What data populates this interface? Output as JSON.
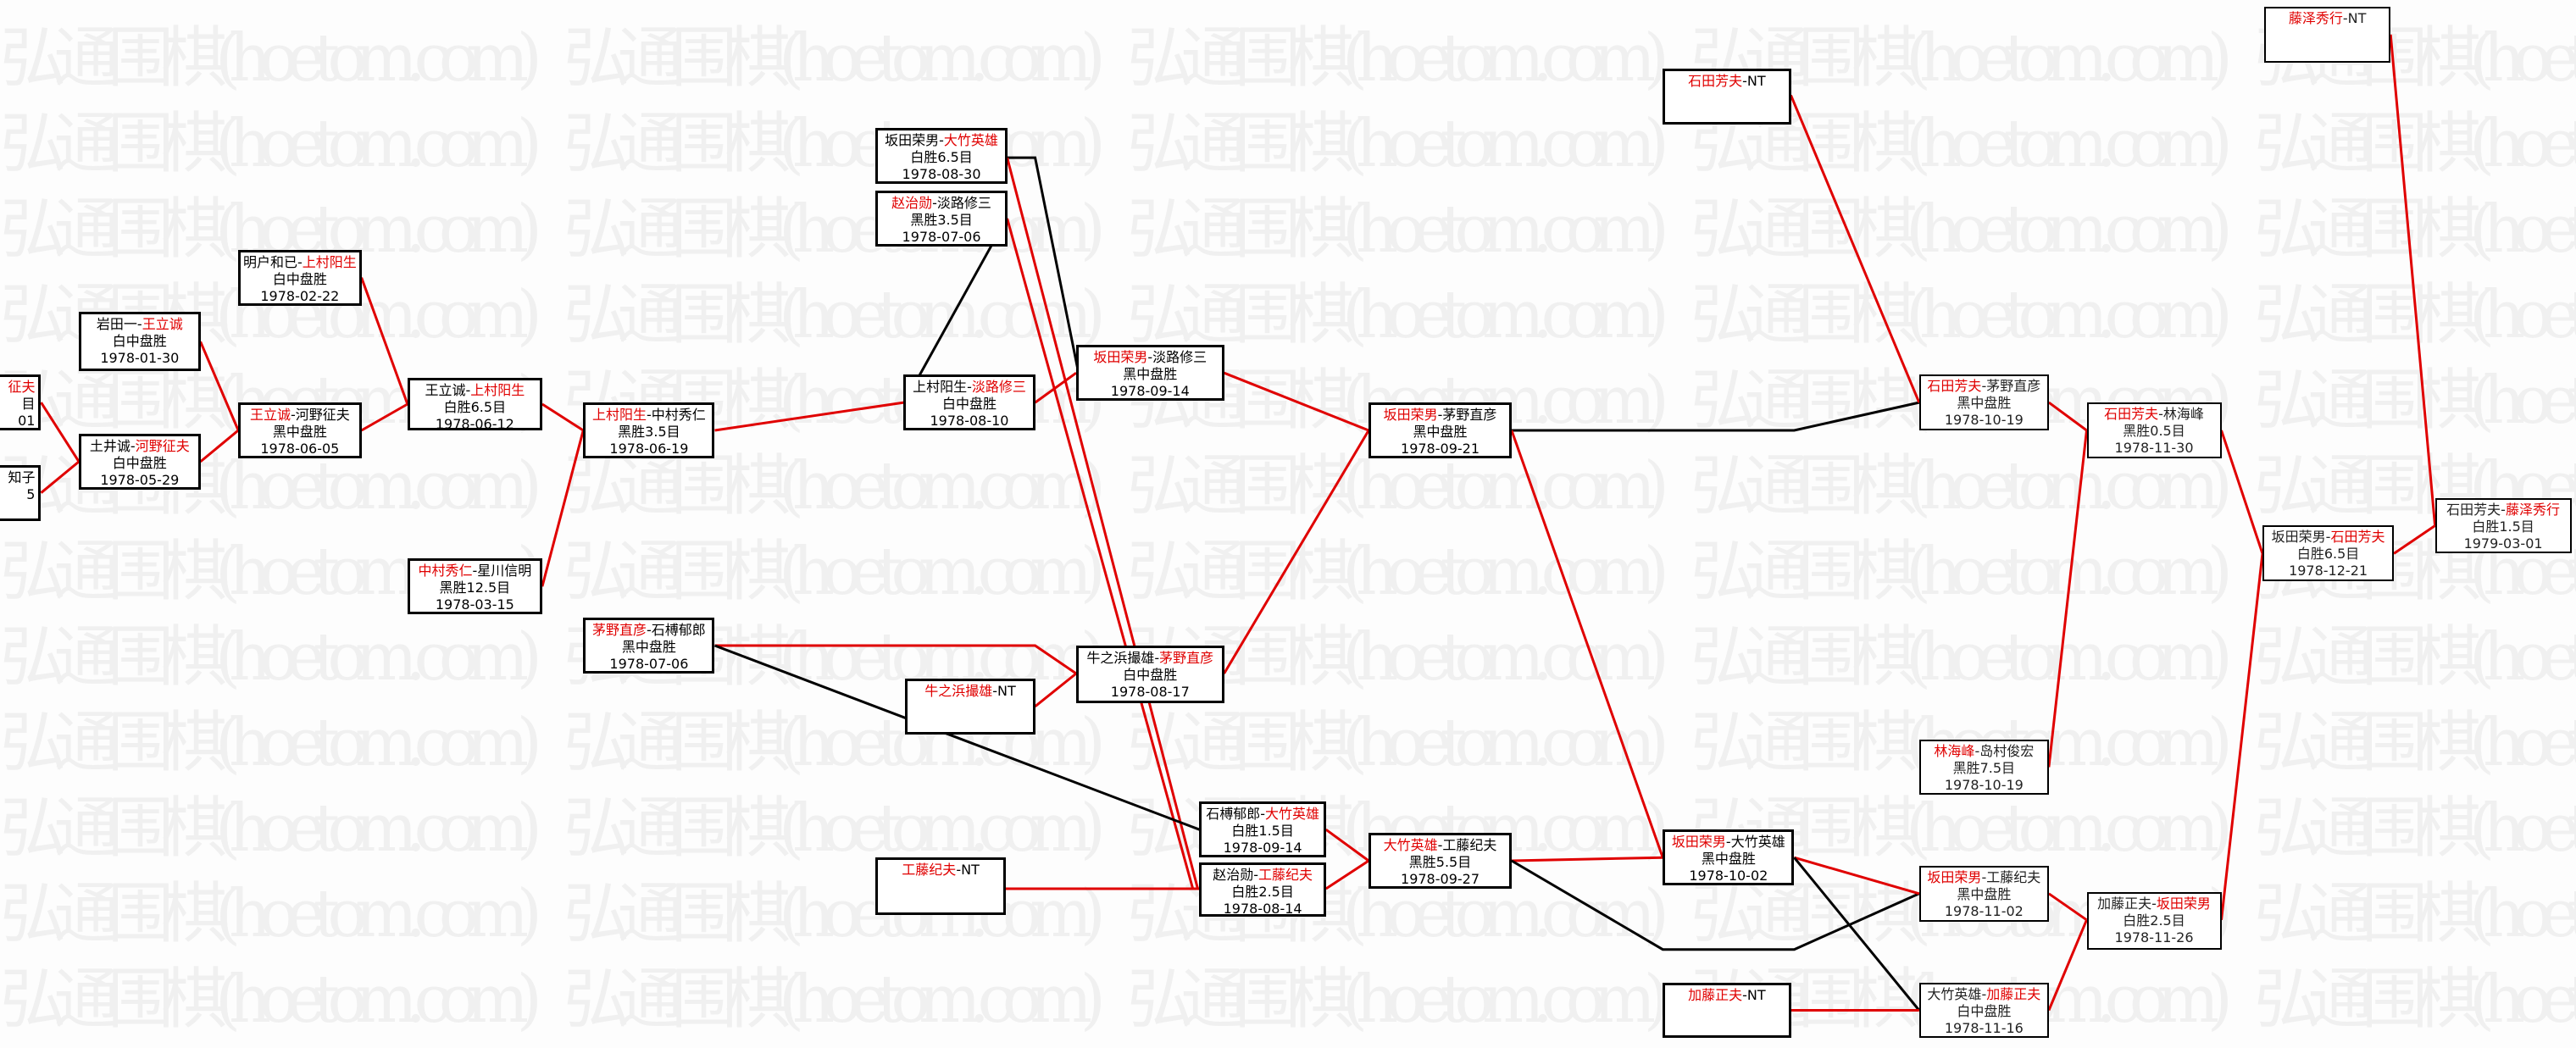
{
  "watermark": "弘通围棋(hoetom.com)",
  "colors": {
    "winner_text": "#e00000",
    "win_line": "#e00000",
    "loss_line": "#000000",
    "box_border": "#000000"
  },
  "matches": [
    {
      "p1": "",
      "p2": "征夫",
      "winner": 2,
      "result": "目",
      "date": "01"
    },
    {
      "p1": "知子",
      "p2": "",
      "winner": 0,
      "result": "",
      "date": "5"
    },
    {
      "p1": "岩田一",
      "p2": "王立诚",
      "winner": 2,
      "result": "白中盘胜",
      "date": "1978-01-30"
    },
    {
      "p1": "土井诚",
      "p2": "河野征夫",
      "winner": 2,
      "result": "白中盘胜",
      "date": "1978-05-29"
    },
    {
      "p1": "明户和已",
      "p2": "上村阳生",
      "winner": 2,
      "result": "白中盘胜",
      "date": "1978-02-22"
    },
    {
      "p1": "王立诚",
      "p2": "河野征夫",
      "winner": 1,
      "result": "黑中盘胜",
      "date": "1978-06-05"
    },
    {
      "p1": "王立诚",
      "p2": "上村阳生",
      "winner": 2,
      "result": "白胜6.5目",
      "date": "1978-06-12"
    },
    {
      "p1": "中村秀仁",
      "p2": "星川信明",
      "winner": 1,
      "result": "黑胜12.5目",
      "date": "1978-03-15"
    },
    {
      "p1": "上村阳生",
      "p2": "中村秀仁",
      "winner": 1,
      "result": "黑胜3.5目",
      "date": "1978-06-19"
    },
    {
      "p1": "茅野直彦",
      "p2": "石榑郁郎",
      "winner": 1,
      "result": "黑中盘胜",
      "date": "1978-07-06"
    },
    {
      "p1": "坂田荣男",
      "p2": "大竹英雄",
      "winner": 2,
      "result": "白胜6.5目",
      "date": "1978-08-30"
    },
    {
      "p1": "赵治勋",
      "p2": "淡路修三",
      "winner": 1,
      "result": "黑胜3.5目",
      "date": "1978-07-06"
    },
    {
      "p1": "上村阳生",
      "p2": "淡路修三",
      "winner": 2,
      "result": "白中盘胜",
      "date": "1978-08-10"
    },
    {
      "p1": "坂田荣男",
      "p2": "淡路修三",
      "winner": 1,
      "result": "黑中盘胜",
      "date": "1978-09-14"
    },
    {
      "p1": "牛之浜撮雄",
      "p2": "NT",
      "winner": 1,
      "result": "",
      "date": ""
    },
    {
      "p1": "牛之浜撮雄",
      "p2": "茅野直彦",
      "winner": 2,
      "result": "白中盘胜",
      "date": "1978-08-17"
    },
    {
      "p1": "石榑郁郎",
      "p2": "大竹英雄",
      "winner": 2,
      "result": "白胜1.5目",
      "date": "1978-09-14"
    },
    {
      "p1": "赵治勋",
      "p2": "工藤纪夫",
      "winner": 2,
      "result": "白胜2.5目",
      "date": "1978-08-14"
    },
    {
      "p1": "工藤纪夫",
      "p2": "NT",
      "winner": 1,
      "result": "",
      "date": ""
    },
    {
      "p1": "坂田荣男",
      "p2": "茅野直彦",
      "winner": 1,
      "result": "黑中盘胜",
      "date": "1978-09-21"
    },
    {
      "p1": "大竹英雄",
      "p2": "工藤纪夫",
      "winner": 1,
      "result": "黑胜5.5目",
      "date": "1978-09-27"
    },
    {
      "p1": "坂田荣男",
      "p2": "大竹英雄",
      "winner": 1,
      "result": "黑中盘胜",
      "date": "1978-10-02"
    },
    {
      "p1": "石田芳夫",
      "p2": "NT",
      "winner": 1,
      "result": "",
      "date": ""
    },
    {
      "p1": "石田芳夫",
      "p2": "茅野直彦",
      "winner": 1,
      "result": "黑中盘胜",
      "date": "1978-10-19"
    },
    {
      "p1": "石田芳夫",
      "p2": "林海峰",
      "winner": 1,
      "result": "黑胜0.5目",
      "date": "1978-11-30"
    },
    {
      "p1": "林海峰",
      "p2": "岛村俊宏",
      "winner": 1,
      "result": "黑胜7.5目",
      "date": "1978-10-19"
    },
    {
      "p1": "坂田荣男",
      "p2": "工藤纪夫",
      "winner": 1,
      "result": "黑中盘胜",
      "date": "1978-11-02"
    },
    {
      "p1": "加藤正夫",
      "p2": "NT",
      "winner": 1,
      "result": "",
      "date": ""
    },
    {
      "p1": "大竹英雄",
      "p2": "加藤正夫",
      "winner": 2,
      "result": "白中盘胜",
      "date": "1978-11-16"
    },
    {
      "p1": "加藤正夫",
      "p2": "坂田荣男",
      "winner": 2,
      "result": "白胜2.5目",
      "date": "1978-11-26"
    },
    {
      "p1": "坂田荣男",
      "p2": "石田芳夫",
      "winner": 2,
      "result": "白胜6.5目",
      "date": "1978-12-21"
    },
    {
      "p1": "石田芳夫",
      "p2": "藤泽秀行",
      "winner": 2,
      "result": "白胜1.5目",
      "date": "1979-03-01"
    },
    {
      "p1": "藤泽秀行",
      "p2": "NT",
      "winner": 1,
      "result": "",
      "date": ""
    }
  ]
}
